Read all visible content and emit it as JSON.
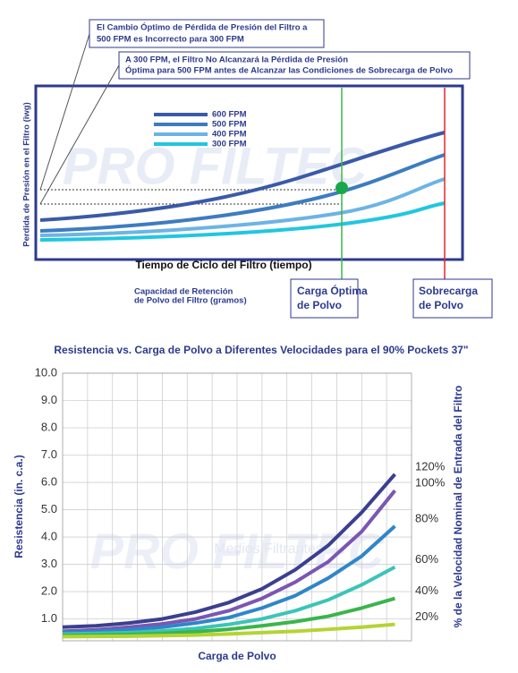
{
  "diagram": {
    "note_top": [
      "El Cambio Óptimo de Pérdida de Presión del Filtro a",
      "500 FPM es Incorrecto para 300 FPM"
    ],
    "note_bottom": [
      "A 300 FPM, el Filtro No Alcanzará la Pérdida de Presión",
      "Óptima para 500 FPM antes de Alcanzar las Condiciones de Sobrecarga de Polvo"
    ],
    "legend": [
      "600 FPM",
      "500 FPM",
      "400 FPM",
      "300 FPM"
    ],
    "y_label": "Perdida de Presión en el Filtro (iwg)",
    "x_label": "Tiempo de Ciclo del Filtro (tiempo)",
    "capacity_note": [
      "Capacidad de Retención",
      "de Polvo del Filtro (gramos)"
    ],
    "optimal_box": [
      "Carga Óptima",
      "de Polvo"
    ],
    "overload_box": [
      "Sobrecarga",
      "de Polvo"
    ],
    "watermark": "PRO FILTEC"
  },
  "chart_data": {
    "type": "line",
    "title": "Resistencia vs. Carga de Polvo a Diferentes Velocidades para el 90% Pockets 37\"",
    "y_label": "Resistencia (in. c.a.)",
    "x_label": "Carga de Polvo",
    "y2_label": "% de la Velocidad Nominal de Entrada del Filtro",
    "watermark": [
      "PRO FILTEC",
      "Medios Filtrantes"
    ],
    "x": [
      0,
      1,
      2,
      3,
      4,
      5,
      6,
      7,
      8,
      9,
      10
    ],
    "xlim": [
      0,
      10.5
    ],
    "ylim": [
      0.2,
      10
    ],
    "yticks": [
      {
        "value": 1,
        "label": "1.0"
      },
      {
        "value": 2,
        "label": "2.0"
      },
      {
        "value": 3,
        "label": "3.0"
      },
      {
        "value": 4,
        "label": "4.0"
      },
      {
        "value": 5,
        "label": "5.0"
      },
      {
        "value": 6,
        "label": "6.0"
      },
      {
        "value": 7,
        "label": "7.0"
      },
      {
        "value": 8,
        "label": "8.0"
      },
      {
        "value": 9,
        "label": "9.0"
      },
      {
        "value": 10,
        "label": "10.0"
      }
    ],
    "grid": true,
    "series": [
      {
        "name": "120%",
        "color": "#3b3f8f",
        "values": [
          0.7,
          0.75,
          0.85,
          1.0,
          1.25,
          1.6,
          2.1,
          2.8,
          3.7,
          4.9,
          6.3
        ]
      },
      {
        "name": "100%",
        "color": "#7b56b2",
        "values": [
          0.55,
          0.6,
          0.7,
          0.82,
          1.0,
          1.3,
          1.75,
          2.35,
          3.1,
          4.2,
          5.7
        ]
      },
      {
        "name": "80%",
        "color": "#2f86c8",
        "values": [
          0.5,
          0.53,
          0.6,
          0.7,
          0.85,
          1.05,
          1.4,
          1.85,
          2.5,
          3.3,
          4.4
        ]
      },
      {
        "name": "60%",
        "color": "#3cc4b8",
        "values": [
          0.45,
          0.47,
          0.5,
          0.56,
          0.65,
          0.8,
          1.0,
          1.3,
          1.7,
          2.25,
          2.9
        ]
      },
      {
        "name": "40%",
        "color": "#3bb54a",
        "values": [
          0.4,
          0.41,
          0.43,
          0.47,
          0.53,
          0.62,
          0.75,
          0.9,
          1.1,
          1.4,
          1.75
        ]
      },
      {
        "name": "20%",
        "color": "#b5d334",
        "values": [
          0.35,
          0.36,
          0.37,
          0.39,
          0.41,
          0.45,
          0.5,
          0.55,
          0.62,
          0.7,
          0.8
        ]
      }
    ]
  }
}
